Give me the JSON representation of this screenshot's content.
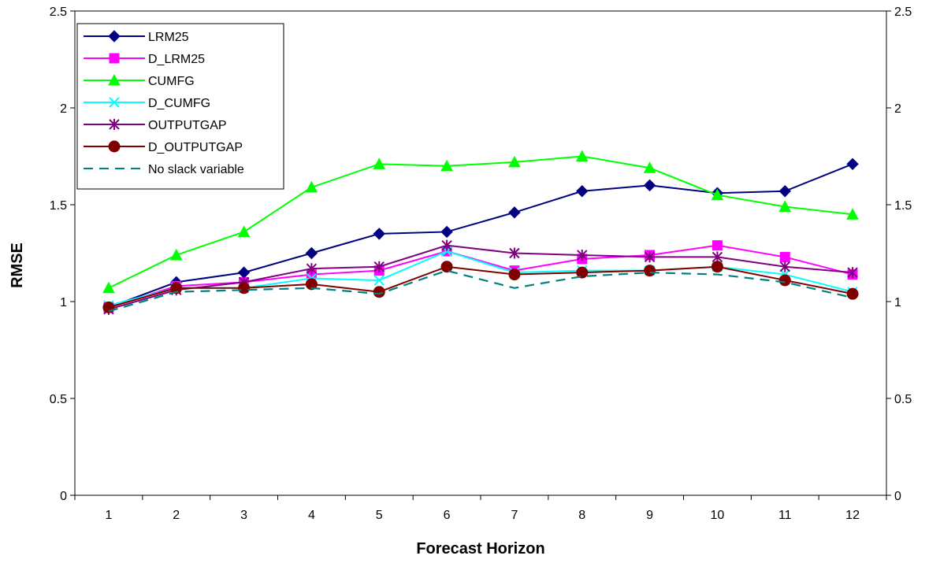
{
  "chart_data": {
    "type": "line",
    "title": "",
    "xlabel": "Forecast Horizon",
    "ylabel": "RMSE",
    "categories": [
      "1",
      "2",
      "3",
      "4",
      "5",
      "6",
      "7",
      "8",
      "9",
      "10",
      "11",
      "12"
    ],
    "ylim": [
      0,
      2.5
    ],
    "yticks": [
      "0",
      "0.5",
      "1",
      "1.5",
      "2",
      "2.5"
    ],
    "secondary_yticks": [
      "0",
      "0.5",
      "1",
      "1.5",
      "2",
      "2.5"
    ],
    "grid": false,
    "legend_position": "top-left",
    "series": [
      {
        "name": "LRM25",
        "color": "#000080",
        "marker": "diamond",
        "dash": false,
        "values": [
          0.97,
          1.1,
          1.15,
          1.25,
          1.35,
          1.36,
          1.46,
          1.57,
          1.6,
          1.56,
          1.57,
          1.71
        ]
      },
      {
        "name": "D_LRM25",
        "color": "#FF00FF",
        "marker": "square",
        "dash": false,
        "values": [
          0.97,
          1.08,
          1.1,
          1.14,
          1.16,
          1.26,
          1.16,
          1.22,
          1.24,
          1.29,
          1.23,
          1.14
        ]
      },
      {
        "name": "CUMFG",
        "color": "#00FF00",
        "marker": "triangle",
        "dash": false,
        "values": [
          1.07,
          1.24,
          1.36,
          1.59,
          1.71,
          1.7,
          1.72,
          1.75,
          1.69,
          1.55,
          1.49,
          1.45
        ]
      },
      {
        "name": "D_CUMFG",
        "color": "#00FFFF",
        "marker": "x",
        "dash": false,
        "values": [
          0.98,
          1.07,
          1.07,
          1.12,
          1.11,
          1.26,
          1.15,
          1.16,
          1.16,
          1.18,
          1.14,
          1.05
        ]
      },
      {
        "name": "OUTPUTGAP",
        "color": "#800080",
        "marker": "star",
        "dash": false,
        "values": [
          0.96,
          1.06,
          1.1,
          1.17,
          1.18,
          1.29,
          1.25,
          1.24,
          1.23,
          1.23,
          1.18,
          1.15
        ]
      },
      {
        "name": "D_OUTPUTGAP",
        "color": "#800000",
        "marker": "circle",
        "dash": false,
        "values": [
          0.97,
          1.07,
          1.07,
          1.09,
          1.05,
          1.18,
          1.14,
          1.15,
          1.16,
          1.18,
          1.11,
          1.04
        ]
      },
      {
        "name": "No slack variable",
        "color": "#008080",
        "marker": "none",
        "dash": true,
        "values": [
          0.95,
          1.05,
          1.06,
          1.07,
          1.04,
          1.16,
          1.07,
          1.13,
          1.15,
          1.14,
          1.1,
          1.02
        ]
      }
    ]
  }
}
